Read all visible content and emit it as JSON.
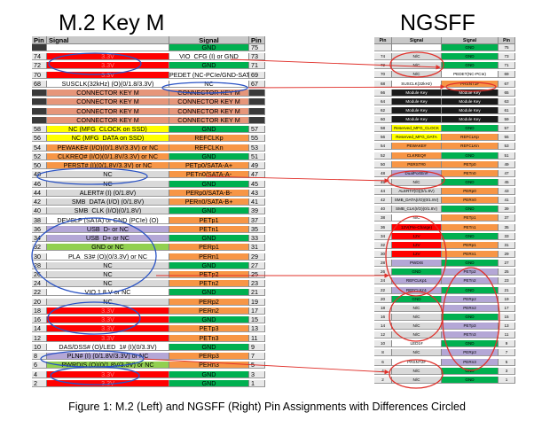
{
  "left_title": "M.2 Key M",
  "right_title": "NGSFF",
  "caption": "Figure 1: M.2 (Left) and NGSFF (Right) Pin Assignments with Differences Circled",
  "colors": {
    "green": "#00b050",
    "red": "#ff0000",
    "orange": "#f79646",
    "salmon": "#e6967a",
    "yellow": "#ffff00",
    "white": "#ffffff",
    "lgray": "#d9d9d9",
    "lavender": "#b4a7d6",
    "ltgreen": "#92d050",
    "black": "#1a1a1a",
    "circle_red": "#e0302a",
    "circle_blue": "#2952c4"
  },
  "left_header": {
    "pin": "Pin",
    "signal": "Signal",
    "signal2": "Signal",
    "pin2": "Pin"
  },
  "right_header": {
    "pin": "Pin",
    "signal": "Signal",
    "signal2": "Signal",
    "pin2": "Pin"
  },
  "left_rows": [
    {
      "lp": "",
      "ls": "",
      "lc": "white",
      "rs": "GND",
      "rc": "green",
      "rp": "75"
    },
    {
      "lp": "74",
      "ls": "3.3V",
      "lc": "red",
      "rs": "VIO_CFG (I) or GND",
      "rc": "white",
      "rp": "73"
    },
    {
      "lp": "72",
      "ls": "3.3V",
      "lc": "red",
      "rs": "GND",
      "rc": "green",
      "rp": "71"
    },
    {
      "lp": "70",
      "ls": "3.3V",
      "lc": "red",
      "rs": "PEDET (NC-PCIe/GND-SATA)",
      "rc": "white",
      "rp": "69"
    },
    {
      "lp": "68",
      "ls": "SUSCLK(32kHz) (O)(0/1.8/3.3V)",
      "lc": "white",
      "rs": "NC",
      "rc": "white",
      "rp": "67"
    },
    {
      "lp": "",
      "ls": "CONNECTOR KEY M",
      "lc": "salmon",
      "rs": "CONNECTOR KEY M",
      "rc": "salmon",
      "rp": ""
    },
    {
      "lp": "",
      "ls": "CONNECTOR KEY M",
      "lc": "salmon",
      "rs": "CONNECTOR KEY M",
      "rc": "salmon",
      "rp": ""
    },
    {
      "lp": "",
      "ls": "CONNECTOR KEY M",
      "lc": "salmon",
      "rs": "CONNECTOR KEY M",
      "rc": "salmon",
      "rp": ""
    },
    {
      "lp": "",
      "ls": "CONNECTOR KEY M",
      "lc": "salmon",
      "rs": "CONNECTOR KEY M",
      "rc": "salmon",
      "rp": ""
    },
    {
      "lp": "58",
      "ls": "NC (MFG_CLOCK on SSD)",
      "lc": "yellow",
      "rs": "GND",
      "rc": "green",
      "rp": "57"
    },
    {
      "lp": "56",
      "ls": "NC (MFG_DATA on SSD)",
      "lc": "yellow",
      "rs": "REFCLKp",
      "rc": "orange",
      "rp": "55"
    },
    {
      "lp": "54",
      "ls": "PEWAKE# (I/O)(0/1.8V/3.3V) or NC",
      "lc": "orange",
      "rs": "REFCLKn",
      "rc": "orange",
      "rp": "53"
    },
    {
      "lp": "52",
      "ls": "CLKREQ# (I/O)(0/1.8V/3.3V) or NC",
      "lc": "orange",
      "rs": "GND",
      "rc": "green",
      "rp": "51"
    },
    {
      "lp": "50",
      "ls": "PERST# (I)(0/1.8V/3.3V) or NC",
      "lc": "orange",
      "rs": "PETp0/SATA-A+",
      "rc": "orange",
      "rp": "49"
    },
    {
      "lp": "48",
      "ls": "NC",
      "lc": "lgray",
      "rs": "PETn0/SATA-A-",
      "rc": "orange",
      "rp": "47"
    },
    {
      "lp": "46",
      "ls": "NC",
      "lc": "lgray",
      "rs": "GND",
      "rc": "green",
      "rp": "45"
    },
    {
      "lp": "44",
      "ls": "ALERT# (I) (0/1.8V)",
      "lc": "lgray",
      "rs": "PERp0/SATA-B-",
      "rc": "orange",
      "rp": "43"
    },
    {
      "lp": "42",
      "ls": "SMB_DATA (I/O) (0/1.8V)",
      "lc": "lgray",
      "rs": "PERn0/SATA-B+",
      "rc": "orange",
      "rp": "41"
    },
    {
      "lp": "40",
      "ls": "SMB_CLK (I/O)(0/1.8V)",
      "lc": "lgray",
      "rs": "GND",
      "rc": "green",
      "rp": "39"
    },
    {
      "lp": "38",
      "ls": "DEVSLP (SATA) or GND (PCIe) (O)",
      "lc": "white",
      "rs": "PETp1",
      "rc": "orange",
      "rp": "37"
    },
    {
      "lp": "36",
      "ls": "USB_D- or NC",
      "lc": "lavender",
      "rs": "PETn1",
      "rc": "orange",
      "rp": "35"
    },
    {
      "lp": "34",
      "ls": "USB_D+ or NC",
      "lc": "lavender",
      "rs": "GND",
      "rc": "green",
      "rp": "33"
    },
    {
      "lp": "32",
      "ls": "GND or NC",
      "lc": "ltgreen",
      "rs": "PERp1",
      "rc": "orange",
      "rp": "31"
    },
    {
      "lp": "30",
      "ls": "PLA_S3# (O)(0/3.3V) or NC",
      "lc": "white",
      "rs": "PERn1",
      "rc": "orange",
      "rp": "29"
    },
    {
      "lp": "28",
      "ls": "NC",
      "lc": "lgray",
      "rs": "GND",
      "rc": "green",
      "rp": "27"
    },
    {
      "lp": "26",
      "ls": "NC",
      "lc": "lgray",
      "rs": "PETp2",
      "rc": "orange",
      "rp": "25"
    },
    {
      "lp": "24",
      "ls": "NC",
      "lc": "lgray",
      "rs": "PETn2",
      "rc": "orange",
      "rp": "23"
    },
    {
      "lp": "22",
      "ls": "VIO 1.8 V or NC",
      "lc": "white",
      "rs": "GND",
      "rc": "green",
      "rp": "21"
    },
    {
      "lp": "20",
      "ls": "NC",
      "lc": "lgray",
      "rs": "PERp2",
      "rc": "orange",
      "rp": "19"
    },
    {
      "lp": "18",
      "ls": "3.3V",
      "lc": "red",
      "rs": "PERn2",
      "rc": "orange",
      "rp": "17"
    },
    {
      "lp": "16",
      "ls": "3.3V",
      "lc": "red",
      "rs": "GND",
      "rc": "green",
      "rp": "15"
    },
    {
      "lp": "14",
      "ls": "3.3V",
      "lc": "red",
      "rs": "PETp3",
      "rc": "orange",
      "rp": "13"
    },
    {
      "lp": "12",
      "ls": "3.3V",
      "lc": "red",
      "rs": "PETn3",
      "rc": "orange",
      "rp": "11"
    },
    {
      "lp": "10",
      "ls": "DAS/DSS# (O)/LED_1# (I)(0/3.3V)",
      "lc": "white",
      "rs": "GND",
      "rc": "green",
      "rp": "9"
    },
    {
      "lp": "8",
      "ls": "PLN# (I) (0/1.8V/3.3V) or NC",
      "lc": "lavender",
      "rs": "PERp3",
      "rc": "orange",
      "rp": "7"
    },
    {
      "lp": "6",
      "ls": "PWRDIS (O)(0/1.8V/3.3V) or NC",
      "lc": "ltgreen",
      "rs": "PERn3",
      "rc": "orange",
      "rp": "5"
    },
    {
      "lp": "4",
      "ls": "3.3V",
      "lc": "red",
      "rs": "GND",
      "rc": "green",
      "rp": "3"
    },
    {
      "lp": "2",
      "ls": "3.3V",
      "lc": "red",
      "rs": "GND",
      "rc": "green",
      "rp": "1"
    }
  ],
  "right_rows": [
    {
      "lp": "",
      "ls": "",
      "lc": "white",
      "rs": "GND",
      "rc": "green",
      "rp": "75"
    },
    {
      "lp": "74",
      "ls": "N/C",
      "lc": "lgray",
      "rs": "GND",
      "rc": "green",
      "rp": "73"
    },
    {
      "lp": "72",
      "ls": "N/C",
      "lc": "lgray",
      "rs": "GND",
      "rc": "green",
      "rp": "71"
    },
    {
      "lp": "70",
      "ls": "N/C",
      "lc": "lgray",
      "rs": "PEDET(NC-PCIe)",
      "rc": "white",
      "rp": "69"
    },
    {
      "lp": "68",
      "ls": "SUSCLK(32kHz)",
      "lc": "white",
      "rs": "PRSNT1#",
      "rc": "orange",
      "rp": "67"
    },
    {
      "lp": "66",
      "ls": "Module Key",
      "lc": "black",
      "rs": "Module Key",
      "rc": "black",
      "rp": "65"
    },
    {
      "lp": "64",
      "ls": "Module Key",
      "lc": "black",
      "rs": "Module Key",
      "rc": "black",
      "rp": "63"
    },
    {
      "lp": "62",
      "ls": "Module Key",
      "lc": "black",
      "rs": "Module Key",
      "rc": "black",
      "rp": "61"
    },
    {
      "lp": "60",
      "ls": "Module Key",
      "lc": "black",
      "rs": "Module Key",
      "rc": "black",
      "rp": "59"
    },
    {
      "lp": "58",
      "ls": "Reserved_MFG_CLOCK",
      "lc": "yellow",
      "rs": "GND",
      "rc": "green",
      "rp": "57"
    },
    {
      "lp": "56",
      "ls": "Reserved_MFG_DATA",
      "lc": "yellow",
      "rs": "REFCLKp",
      "rc": "orange",
      "rp": "55"
    },
    {
      "lp": "54",
      "ls": "PEWAKE#",
      "lc": "orange",
      "rs": "REFCLKn",
      "rc": "orange",
      "rp": "53"
    },
    {
      "lp": "52",
      "ls": "CLKREQ#",
      "lc": "orange",
      "rs": "GND",
      "rc": "green",
      "rp": "51"
    },
    {
      "lp": "50",
      "ls": "PERST#0",
      "lc": "orange",
      "rs": "PETp0",
      "rc": "orange",
      "rp": "49"
    },
    {
      "lp": "48",
      "ls": "DualPortEn#",
      "lc": "lavender",
      "rs": "PETn0",
      "rc": "orange",
      "rp": "47"
    },
    {
      "lp": "46",
      "ls": "N/C",
      "lc": "lgray",
      "rs": "GND",
      "rc": "green",
      "rp": "45"
    },
    {
      "lp": "44",
      "ls": "ALERT#(O)(0/1.8V)",
      "lc": "lgray",
      "rs": "PERp0",
      "rc": "orange",
      "rp": "43"
    },
    {
      "lp": "42",
      "ls": "SMB_DATA(I/O)(0/1.8V)",
      "lc": "lgray",
      "rs": "PERn0",
      "rc": "orange",
      "rp": "41"
    },
    {
      "lp": "40",
      "ls": "SMB_CLK(I/O)(0/1.8V)",
      "lc": "lgray",
      "rs": "GND",
      "rc": "green",
      "rp": "39"
    },
    {
      "lp": "38",
      "ls": "N/C",
      "lc": "white",
      "rs": "PETp1",
      "rc": "orange",
      "rp": "37"
    },
    {
      "lp": "36",
      "ls": "12V(Pre-Charge)",
      "lc": "red",
      "rs": "PETn1",
      "rc": "orange",
      "rp": "35"
    },
    {
      "lp": "34",
      "ls": "12V",
      "lc": "red",
      "rs": "GND",
      "rc": "green",
      "rp": "33"
    },
    {
      "lp": "32",
      "ls": "12V",
      "lc": "red",
      "rs": "PERp1",
      "rc": "orange",
      "rp": "31"
    },
    {
      "lp": "30",
      "ls": "12V",
      "lc": "red",
      "rs": "PERn1",
      "rc": "orange",
      "rp": "29"
    },
    {
      "lp": "28",
      "ls": "PWDIS",
      "lc": "lavender",
      "rs": "GND",
      "rc": "green",
      "rp": "27"
    },
    {
      "lp": "26",
      "ls": "GND",
      "lc": "green",
      "rs": "PETp2",
      "rc": "lavender",
      "rp": "25"
    },
    {
      "lp": "24",
      "ls": "REFCLKp1",
      "lc": "lavender",
      "rs": "PETn2",
      "rc": "lavender",
      "rp": "23"
    },
    {
      "lp": "22",
      "ls": "REFCLKn1",
      "lc": "lavender",
      "rs": "GND",
      "rc": "green",
      "rp": "21"
    },
    {
      "lp": "20",
      "ls": "GND",
      "lc": "green",
      "rs": "PERp2",
      "rc": "lavender",
      "rp": "19"
    },
    {
      "lp": "18",
      "ls": "N/C",
      "lc": "lgray",
      "rs": "PERn2",
      "rc": "lavender",
      "rp": "17"
    },
    {
      "lp": "16",
      "ls": "N/C",
      "lc": "lgray",
      "rs": "GND",
      "rc": "green",
      "rp": "15"
    },
    {
      "lp": "14",
      "ls": "N/C",
      "lc": "lgray",
      "rs": "PETp3",
      "rc": "lavender",
      "rp": "13"
    },
    {
      "lp": "12",
      "ls": "N/C",
      "lc": "lgray",
      "rs": "PETn3",
      "rc": "lavender",
      "rp": "11"
    },
    {
      "lp": "10",
      "ls": "LED1#",
      "lc": "white",
      "rs": "GND",
      "rc": "green",
      "rp": "9"
    },
    {
      "lp": "8",
      "ls": "N/C",
      "lc": "lgray",
      "rs": "PERp3",
      "rc": "lavender",
      "rp": "7"
    },
    {
      "lp": "6",
      "ls": "PRSNT2#",
      "lc": "white",
      "rs": "PERn3",
      "rc": "lavender",
      "rp": "5"
    },
    {
      "lp": "4",
      "ls": "N/C",
      "lc": "lgray",
      "rs": "GND",
      "rc": "green",
      "rp": "3"
    },
    {
      "lp": "2",
      "ls": "N/C",
      "lc": "lgray",
      "rs": "GND",
      "rc": "green",
      "rp": "1"
    }
  ]
}
